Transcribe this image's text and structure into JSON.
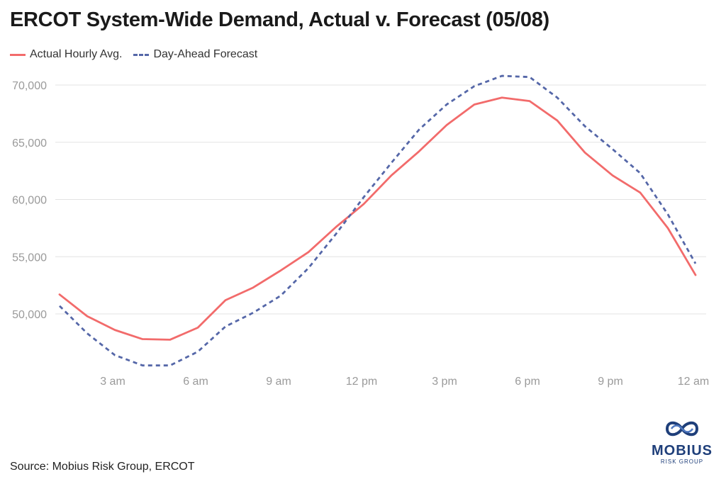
{
  "chart_data": {
    "type": "line",
    "title": "ERCOT System-Wide Demand, Actual v. Forecast (05/08)",
    "xlabel": "",
    "ylabel": "",
    "x": [
      1,
      2,
      3,
      4,
      5,
      6,
      7,
      8,
      9,
      10,
      11,
      12,
      13,
      14,
      15,
      16,
      17,
      18,
      19,
      20,
      21,
      22,
      23,
      24
    ],
    "ylim": [
      44000,
      71000
    ],
    "yticks": [
      50000,
      55000,
      60000,
      65000,
      70000
    ],
    "ytick_labels": [
      "50,000",
      "55,000",
      "60,000",
      "65,000",
      "70,000"
    ],
    "xticks": [
      3,
      6,
      9,
      12,
      15,
      18,
      21,
      24
    ],
    "xtick_labels": [
      "3 am",
      "6 am",
      "9 am",
      "12 pm",
      "3 pm",
      "6 pm",
      "9 pm",
      "12 am"
    ],
    "legend_position": "top-left",
    "series": [
      {
        "name": "Actual Hourly Avg.",
        "color": "#f26b6b",
        "style": "solid",
        "values": [
          51700,
          49800,
          48600,
          47800,
          47750,
          48800,
          51200,
          52300,
          53800,
          55400,
          57600,
          59600,
          62100,
          64200,
          66500,
          68300,
          68900,
          68600,
          66900,
          64100,
          62100,
          60600,
          57500,
          53400
        ]
      },
      {
        "name": "Day-Ahead Forecast",
        "color": "#5567a8",
        "style": "dashed",
        "values": [
          50700,
          48300,
          46400,
          45500,
          45500,
          46700,
          48900,
          50100,
          51600,
          54000,
          57000,
          60200,
          63200,
          66100,
          68300,
          69900,
          70800,
          70700,
          68900,
          66400,
          64400,
          62300,
          58700,
          54400
        ]
      }
    ]
  },
  "source": "Source: Mobius Risk Group, ERCOT",
  "logo": {
    "name": "MOBIUS",
    "subtitle": "RISK GROUP",
    "icon": "mobius-infinity-icon"
  }
}
